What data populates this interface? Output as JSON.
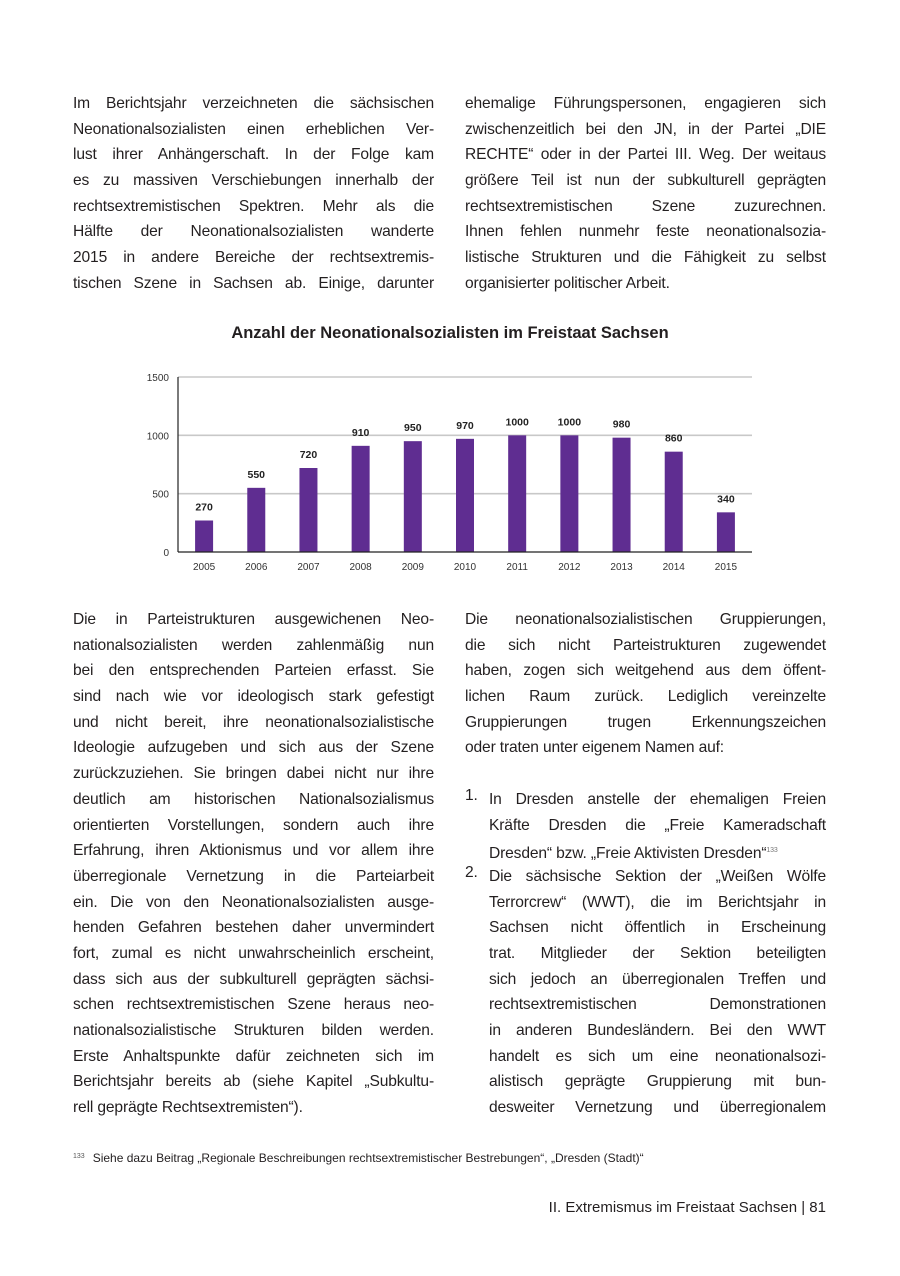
{
  "top_left": {
    "lines": [
      "Im Berichtsjahr verzeichneten die sächsischen",
      "Neonationalsozialisten einen erheblichen Ver-",
      "lust ihrer Anhängerschaft. In der Folge kam",
      "es zu massiven Verschiebungen innerhalb der",
      "rechtsextremistischen Spektren. Mehr als die",
      "Hälfte der Neonationalsozialisten wanderte",
      "2015 in andere Bereiche der rechtsextremis-",
      "tischen Szene in Sachsen ab. Einige, darunter"
    ]
  },
  "top_right": {
    "lines": [
      "ehemalige Führungspersonen, engagieren sich",
      "zwischenzeitlich bei den JN, in der Partei „DIE",
      "RECHTE“ oder in der Partei III. Weg. Der weitaus",
      "größere Teil ist nun der subkulturell geprägten",
      "rechtsextremistischen Szene zuzurechnen.",
      "Ihnen fehlen nunmehr feste neonationalsozia-",
      "listische Strukturen und die Fähigkeit zu selbst",
      "organisierter politischer Arbeit."
    ]
  },
  "chart_data": {
    "type": "bar",
    "title": "Anzahl der Neonationalsozialisten im Freistaat Sachsen",
    "categories": [
      "2005",
      "2006",
      "2007",
      "2008",
      "2009",
      "2010",
      "2011",
      "2012",
      "2013",
      "2014",
      "2015"
    ],
    "values": [
      270,
      550,
      720,
      910,
      950,
      970,
      1000,
      1000,
      980,
      860,
      340
    ],
    "yticks": [
      "0",
      "500",
      "1000",
      "1500"
    ],
    "ylim": [
      0,
      1500
    ],
    "xlabel": "",
    "ylabel": "",
    "grid": true,
    "bar_color": "#5f2d91"
  },
  "bottom_left": {
    "lines": [
      "Die in Parteistrukturen ausgewichenen Neo-",
      "nationalsozialisten werden zahlenmäßig nun",
      "bei den entsprechenden Parteien erfasst. Sie",
      "sind nach wie vor ideologisch stark gefestigt",
      "und nicht bereit, ihre neonationalsozialistische",
      "Ideologie aufzugeben und sich aus der Szene",
      "zurückzuziehen. Sie bringen dabei nicht nur ihre",
      "deutlich am historischen Nationalsozialismus",
      "orientierten Vorstellungen, sondern auch ihre",
      "Erfahrung, ihren Aktionismus und vor allem ihre",
      "überregionale Vernetzung in die Parteiarbeit",
      "ein. Die von den Neonationalsozialisten ausge-",
      "henden Gefahren bestehen daher unvermindert",
      "fort, zumal es nicht unwahrscheinlich erscheint,",
      "dass sich aus der subkulturell geprägten sächsi-",
      "schen rechtsextremistischen Szene heraus neo-",
      "nationalsozialistische Strukturen bilden werden.",
      "Erste Anhaltspunkte dafür zeichneten sich im",
      "Berichtsjahr bereits ab (siehe Kapitel „Subkultu-",
      "rell geprägte Rechtsextremisten“)."
    ]
  },
  "bottom_right": {
    "intro_lines": [
      "Die neonationalsozialistischen Gruppierungen,",
      "die sich nicht Parteistrukturen zugewendet",
      "haben, zogen sich weitgehend aus dem öffent-",
      "lichen Raum zurück. Lediglich vereinzelte",
      "Gruppierungen trugen Erkennungszeichen",
      "oder traten unter eigenem Namen auf:"
    ],
    "list": [
      {
        "num": "1.",
        "lines": [
          "In Dresden anstelle der ehemaligen Freien",
          "Kräfte Dresden die „Freie Kameradschaft",
          "Dresden“ bzw. „Freie Aktivisten Dresden“"
        ],
        "footnote_ref": "133"
      },
      {
        "num": "2.",
        "lines": [
          "Die sächsische Sektion der „Weißen Wölfe",
          "Terrorcrew“ (WWT), die im Berichtsjahr in",
          "Sachsen nicht öffentlich in Erscheinung",
          "trat. Mitglieder der Sektion beteiligten",
          "sich jedoch an überregionalen Treffen und",
          "rechtsextremistischen Demonstrationen",
          "in anderen Bundesländern. Bei den WWT",
          "handelt es sich um eine neonationalsozi-",
          "alistisch geprägte Gruppierung mit bun-",
          "desweiter Vernetzung und überregionalem"
        ]
      }
    ]
  },
  "footnote": {
    "num": "133",
    "text": "Siehe dazu Beitrag „Regionale Beschreibungen rechtsextremistischer Bestrebungen“, „Dresden (Stadt)“"
  },
  "footer": {
    "text": "II. Extremismus im Freistaat Sachsen | 81"
  }
}
